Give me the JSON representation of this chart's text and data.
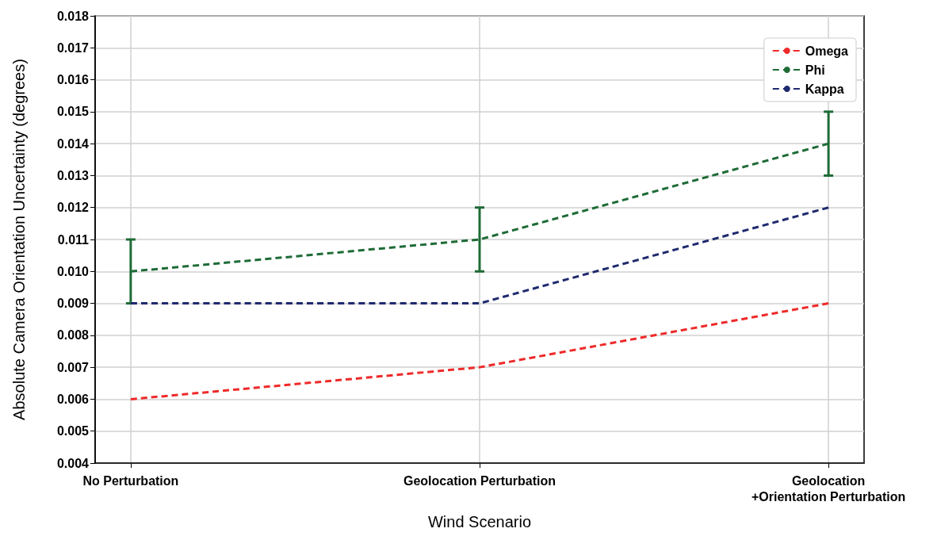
{
  "chart_data": {
    "type": "line",
    "xlabel": "Wind Scenario",
    "ylabel": "Absolute Camera Orientation Uncertainty (degrees)",
    "categories": [
      "No Perturbation",
      "Geolocation Perturbation",
      "Geolocation\n+Orientation Perturbation"
    ],
    "series": [
      {
        "name": "Omega",
        "color": "#ee2a2a",
        "values": [
          0.006,
          0.007,
          0.009
        ]
      },
      {
        "name": "Phi",
        "color": "#1e6b36",
        "values": [
          0.01,
          0.011,
          0.014
        ],
        "errors": [
          0.001,
          0.001,
          0.001
        ]
      },
      {
        "name": "Kappa",
        "color": "#1f2a6e",
        "values": [
          0.009,
          0.009,
          0.012
        ]
      }
    ],
    "ylim": [
      0.004,
      0.018
    ],
    "yticks": [
      0.004,
      0.005,
      0.006,
      0.007,
      0.008,
      0.009,
      {
        "value": 0.01,
        "label": "0.010"
      },
      0.011,
      0.012,
      0.013,
      0.014,
      0.015,
      0.016,
      0.017,
      0.018
    ],
    "grid": true,
    "legend": "top right",
    "line_style": "dashed",
    "marker": "none"
  }
}
